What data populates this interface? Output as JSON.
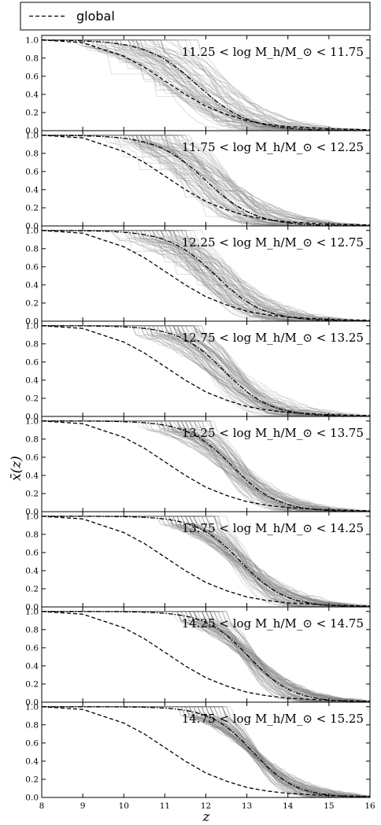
{
  "chart_data": {
    "type": "line",
    "xlabel": "z",
    "ylabel": "x̄(z)",
    "xlim": [
      8,
      16
    ],
    "ylim": [
      0,
      1.05
    ],
    "x_ticks": [
      "8",
      "9",
      "10",
      "11",
      "12",
      "13",
      "14",
      "15",
      "16"
    ],
    "y_ticks": [
      "0.0",
      "0.2",
      "0.4",
      "0.6",
      "0.8",
      "1.0"
    ],
    "legend": {
      "placement": "top",
      "entries": [
        {
          "name": "global",
          "style": "dashed",
          "color": "#000000"
        }
      ]
    },
    "colors": {
      "individual": "#808080",
      "mean": "#000000",
      "global": "#000000"
    },
    "global_series": {
      "name": "global",
      "x": [
        8,
        9,
        10,
        10.5,
        11,
        11.5,
        12,
        12.5,
        13,
        13.5,
        14,
        15,
        16
      ],
      "y": [
        1.0,
        0.97,
        0.82,
        0.7,
        0.55,
        0.4,
        0.27,
        0.18,
        0.11,
        0.07,
        0.045,
        0.02,
        0.01
      ]
    },
    "panels": [
      {
        "label": "11.25 < log M_h/M_⊙ < 11.75",
        "mean_midpoint_z": 11.8,
        "mean_width": 0.62,
        "spread": 0.85,
        "n_lines": 75
      },
      {
        "label": "11.75 < log M_h/M_⊙ < 12.25",
        "mean_midpoint_z": 12.0,
        "mean_width": 0.6,
        "spread": 0.7,
        "n_lines": 75
      },
      {
        "label": "12.25 < log M_h/M_⊙ < 12.75",
        "mean_midpoint_z": 12.25,
        "mean_width": 0.58,
        "spread": 0.55,
        "n_lines": 75
      },
      {
        "label": "12.75 < log M_h/M_⊙ < 13.25",
        "mean_midpoint_z": 12.45,
        "mean_width": 0.56,
        "spread": 0.45,
        "n_lines": 75
      },
      {
        "label": "13.25 < log M_h/M_⊙ < 13.75",
        "mean_midpoint_z": 12.65,
        "mean_width": 0.55,
        "spread": 0.35,
        "n_lines": 75
      },
      {
        "label": "13.75 < log M_h/M_⊙ < 14.25",
        "mean_midpoint_z": 12.85,
        "mean_width": 0.54,
        "spread": 0.28,
        "n_lines": 75
      },
      {
        "label": "14.25 < log M_h/M_⊙ < 14.75",
        "mean_midpoint_z": 13.05,
        "mean_width": 0.53,
        "spread": 0.2,
        "n_lines": 75
      },
      {
        "label": "14.75 < log M_h/M_⊙ < 15.25",
        "mean_midpoint_z": 13.15,
        "mean_width": 0.52,
        "spread": 0.15,
        "n_lines": 75
      }
    ]
  }
}
